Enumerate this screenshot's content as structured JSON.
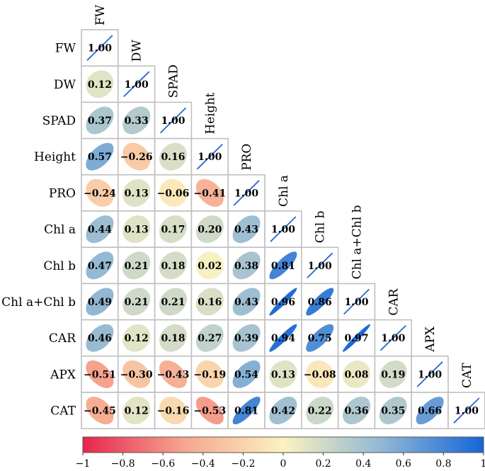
{
  "chart_data": {
    "type": "heatmap",
    "subtype": "lower-triangle correlation matrix with ellipse glyphs",
    "variables": [
      "FW",
      "DW",
      "SPAD",
      "Height",
      "PRO",
      "Chl a",
      "Chl b",
      "Chl a+Chl b",
      "CAR",
      "APX",
      "CAT"
    ],
    "matrix": [
      [
        1.0
      ],
      [
        0.12,
        1.0
      ],
      [
        0.37,
        0.33,
        1.0
      ],
      [
        0.57,
        -0.26,
        0.16,
        1.0
      ],
      [
        -0.24,
        0.13,
        -0.06,
        -0.41,
        1.0
      ],
      [
        0.44,
        0.13,
        0.17,
        0.2,
        0.43,
        1.0
      ],
      [
        0.47,
        0.21,
        0.18,
        0.02,
        0.38,
        0.81,
        1.0
      ],
      [
        0.49,
        0.21,
        0.21,
        0.16,
        0.43,
        0.96,
        0.86,
        1.0
      ],
      [
        0.46,
        0.12,
        0.18,
        0.27,
        0.39,
        0.94,
        0.75,
        0.97,
        1.0
      ],
      [
        -0.51,
        -0.3,
        -0.43,
        -0.19,
        0.54,
        0.13,
        -0.08,
        0.08,
        0.19,
        1.0
      ],
      [
        -0.45,
        0.12,
        -0.16,
        -0.53,
        0.81,
        0.42,
        0.22,
        0.36,
        0.35,
        0.66,
        1.0
      ]
    ],
    "colorbar": {
      "range": [
        -1,
        1
      ],
      "ticks": [
        -1,
        -0.8,
        -0.6,
        -0.4,
        -0.2,
        0,
        0.2,
        0.4,
        0.6,
        0.8,
        1
      ],
      "tick_labels": [
        "−1",
        "−0.8",
        "−0.6",
        "−0.4",
        "−0.2",
        "0",
        "0.2",
        "0.4",
        "0.6",
        "0.8",
        "1"
      ],
      "colors": [
        "#e8244e",
        "#f5a58f",
        "#fbf2c0",
        "#8fb6d4",
        "#1466d6"
      ],
      "placement": "bottom"
    }
  }
}
